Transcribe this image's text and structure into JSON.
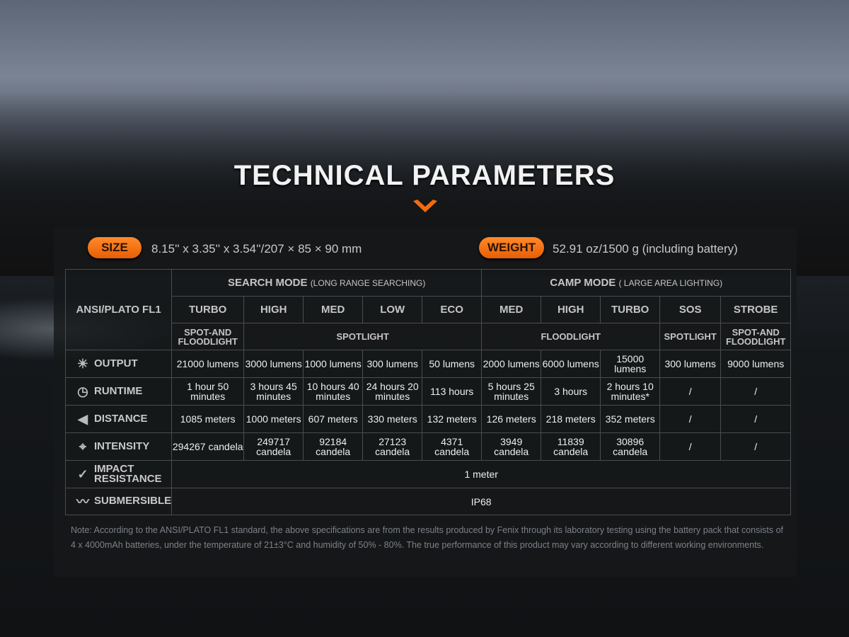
{
  "title": "TECHNICAL PARAMETERS",
  "accent_color": "#f26b0f",
  "size": {
    "label": "SIZE",
    "value": "8.15'' x 3.35'' x 3.54''/207 × 85 × 90 mm"
  },
  "weight": {
    "label": "WEIGHT",
    "value": "52.91 oz/1500 g (including battery)"
  },
  "table": {
    "corner": "ANSI/PLATO FL1",
    "search_mode": {
      "title": "SEARCH MODE",
      "subtitle": "(LONG RANGE SEARCHING)"
    },
    "camp_mode": {
      "title": "CAMP MODE",
      "subtitle": "( LARGE AREA LIGHTING)"
    },
    "modes": [
      "TURBO",
      "HIGH",
      "MED",
      "LOW",
      "ECO",
      "MED",
      "HIGH",
      "TURBO",
      "SOS",
      "STROBE"
    ],
    "beams": [
      "SPOT-AND FLOODLIGHT",
      "SPOTLIGHT",
      "FLOODLIGHT",
      "SPOTLIGHT",
      "SPOT-AND FLOODLIGHT"
    ],
    "rows": [
      {
        "label": "OUTPUT",
        "icon": "output-rays-icon",
        "values": [
          "21000 lumens",
          "3000 lumens",
          "1000 lumens",
          "300 lumens",
          "50 lumens",
          "2000 lumens",
          "6000 lumens",
          "15000 lumens",
          "300 lumens",
          "9000 lumens"
        ]
      },
      {
        "label": "RUNTIME",
        "icon": "clock-icon",
        "values": [
          "1 hour 50 minutes",
          "3 hours 45 minutes",
          "10 hours 40 minutes",
          "24 hours 20 minutes",
          "113 hours",
          "5 hours 25 minutes",
          "3 hours",
          "2 hours 10 minutes*",
          "/",
          "/"
        ]
      },
      {
        "label": "DISTANCE",
        "icon": "beam-distance-icon",
        "values": [
          "1085 meters",
          "1000 meters",
          "607 meters",
          "330 meters",
          "132 meters",
          "126 meters",
          "218 meters",
          "352 meters",
          "/",
          "/"
        ]
      },
      {
        "label": "INTENSITY",
        "icon": "crosshair-icon",
        "values": [
          "294267 candela",
          "249717 candela",
          "92184 candela",
          "27123 candela",
          "4371 candela",
          "3949 candela",
          "11839 candela",
          "30896 candela",
          "/",
          "/"
        ]
      }
    ],
    "impact": {
      "label": "IMPACT RESISTANCE",
      "icon": "impact-check-icon",
      "value": "1 meter"
    },
    "submersible": {
      "label": "SUBMERSIBLE",
      "icon": "water-wave-icon",
      "value": "IP68"
    }
  },
  "note": "Note: According to the ANSI/PLATO FL1 standard, the above specifications are from the results produced by Fenix through its laboratory testing using the battery pack that consists of 4 x 4000mAh batteries, under the temperature of 21±3°C and humidity of 50% - 80%. The true performance of this product may vary according to different working environments."
}
